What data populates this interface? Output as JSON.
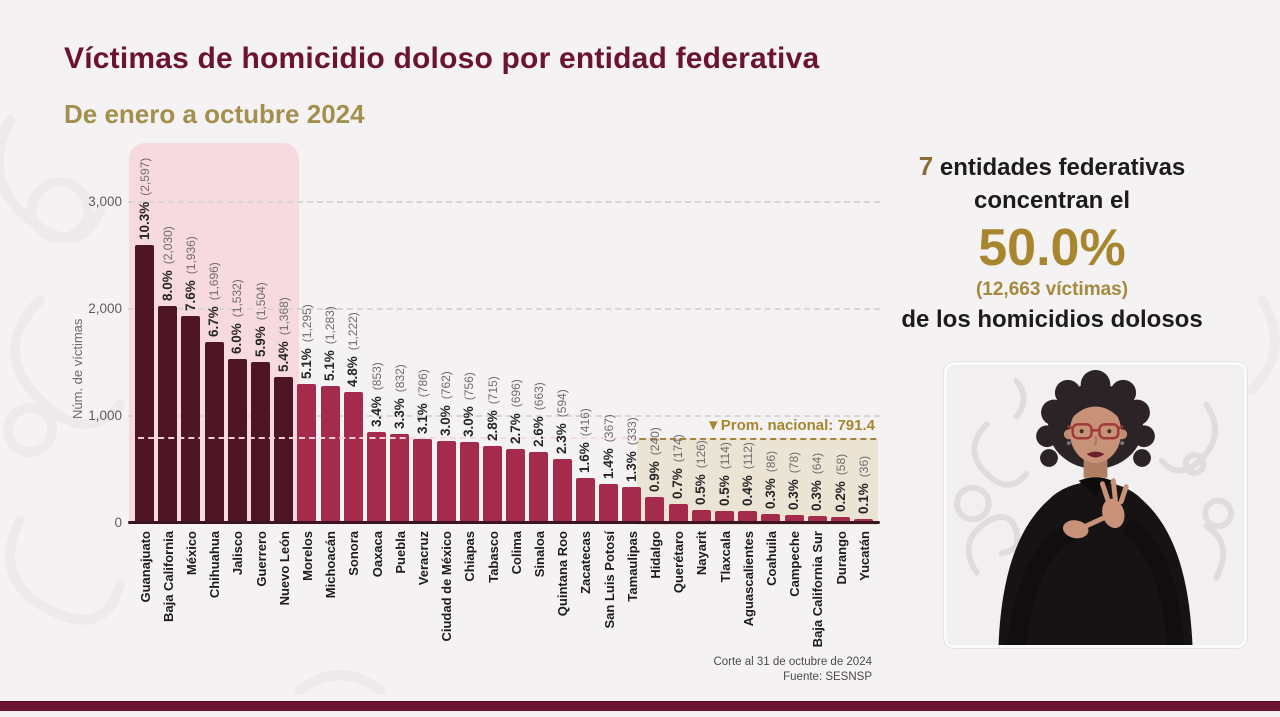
{
  "slide": {
    "title": "Víctimas de homicidio doloso por entidad federativa",
    "subtitle": "De enero a octubre 2024",
    "footer_line1": "Corte al 31 de octubre de 2024",
    "footer_line2": "Fuente: SESNSP"
  },
  "chart_data": {
    "type": "bar",
    "title": "Víctimas de homicidio doloso por entidad federativa",
    "subtitle": "De enero a octubre 2024",
    "xlabel": "",
    "ylabel": "Núm. de víctimas",
    "ylim": [
      0,
      3000
    ],
    "ytick_values": [
      0,
      1000,
      2000,
      3000
    ],
    "ytick_labels": [
      "0",
      "1,000",
      "2,000",
      "3,000"
    ],
    "grid": "horizontal dashed",
    "legend_position": "none",
    "national_average_value": 791.4,
    "national_average_label": "▼Prom. nacional: 791.4",
    "highlight_top_n": 7,
    "categories": [
      "Guanajuato",
      "Baja California",
      "México",
      "Chihuahua",
      "Jalisco",
      "Guerrero",
      "Nuevo León",
      "Morelos",
      "Michoacán",
      "Sonora",
      "Oaxaca",
      "Puebla",
      "Veracruz",
      "Ciudad de México",
      "Chiapas",
      "Tabasco",
      "Colima",
      "Sinaloa",
      "Quintana Roo",
      "Zacatecas",
      "San Luis Potosí",
      "Tamaulipas",
      "Hidalgo",
      "Querétaro",
      "Nayarit",
      "Tlaxcala",
      "Aguascalientes",
      "Coahuila",
      "Campeche",
      "Baja California Sur",
      "Durango",
      "Yucatán"
    ],
    "values": [
      2597,
      2030,
      1936,
      1696,
      1532,
      1504,
      1368,
      1295,
      1283,
      1222,
      853,
      832,
      786,
      762,
      756,
      715,
      696,
      663,
      594,
      416,
      367,
      333,
      240,
      174,
      126,
      114,
      112,
      86,
      78,
      64,
      58,
      36
    ],
    "percent_labels": [
      "10.3%",
      "8.0%",
      "7.6%",
      "6.7%",
      "6.0%",
      "5.9%",
      "5.4%",
      "5.1%",
      "5.1%",
      "4.8%",
      "3.4%",
      "3.3%",
      "3.1%",
      "3.0%",
      "3.0%",
      "2.8%",
      "2.7%",
      "2.6%",
      "2.3%",
      "1.6%",
      "1.4%",
      "1.3%",
      "0.9%",
      "0.7%",
      "0.5%",
      "0.5%",
      "0.4%",
      "0.3%",
      "0.3%",
      "0.3%",
      "0.2%",
      "0.1%"
    ],
    "count_labels": [
      "(2,597)",
      "(2,030)",
      "(1,936)",
      "(1,696)",
      "(1,532)",
      "(1,504)",
      "(1,368)",
      "(1,295)",
      "(1,283)",
      "(1,222)",
      "(853)",
      "(832)",
      "(786)",
      "(762)",
      "(756)",
      "(715)",
      "(696)",
      "(663)",
      "(594)",
      "(416)",
      "(367)",
      "(333)",
      "(240)",
      "(174)",
      "(126)",
      "(114)",
      "(112)",
      "(86)",
      "(78)",
      "(64)",
      "(58)",
      "(36)"
    ]
  },
  "colors": {
    "title": "#6b1331",
    "subtitle_gold": "#a3904f",
    "bar_dark": "#4e1527",
    "bar_light": "#a52b4d",
    "highlight_pink": "#f7d9e0",
    "highlight_beige": "#e9e3d3",
    "accent_gold": "#a8862f",
    "bottom_bar": "#6d1334"
  },
  "callout": {
    "line1_number": "7",
    "line1_rest": " entidades federativas",
    "line2": "concentran el",
    "percent": "50.0%",
    "victims": "(12,663  víctimas)",
    "line3": "de los homicidios dolosos"
  }
}
